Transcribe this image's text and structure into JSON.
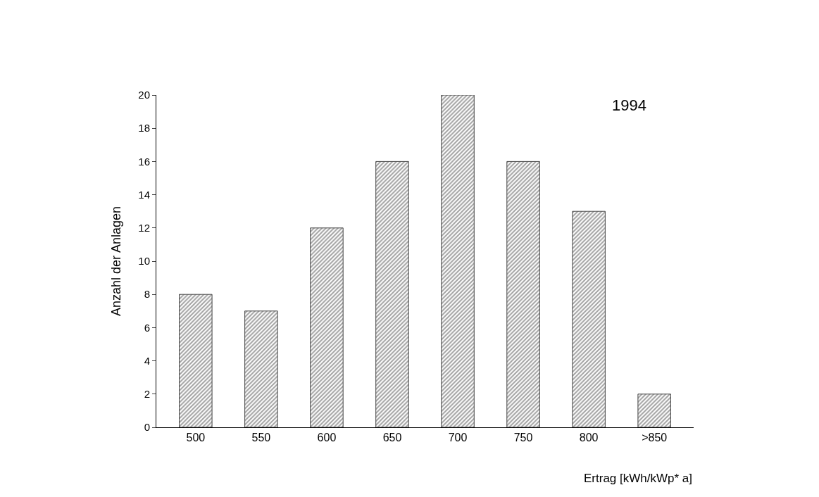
{
  "chart_data": {
    "type": "bar",
    "xlabel": "Ertrag [kWh/kWp* a]",
    "ylabel": "Anzahl der Anlagen",
    "annotations": [
      "1994"
    ],
    "categories": [
      "500",
      "550",
      "600",
      "650",
      "700",
      "750",
      "800",
      ">850"
    ],
    "values": [
      8,
      7,
      12,
      16,
      20,
      16,
      13,
      2
    ],
    "color": "#444444",
    "ylim": [
      0,
      20
    ],
    "yticks": [
      0,
      2,
      4,
      6,
      8,
      10,
      12,
      14,
      16,
      18,
      20
    ]
  }
}
